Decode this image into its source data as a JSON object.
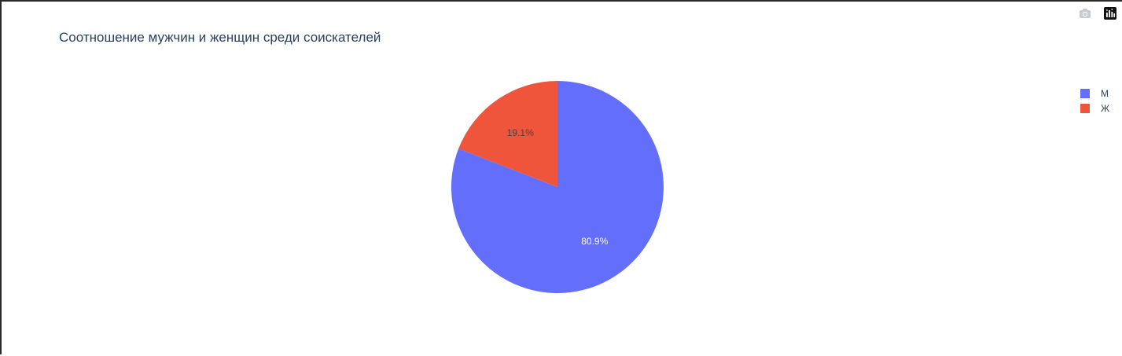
{
  "chart_data": {
    "type": "pie",
    "title": "Соотношение мужчин и женщин среди соискателей",
    "labels": [
      "М",
      "Ж"
    ],
    "values": [
      80.9,
      19.1
    ],
    "value_labels": [
      "80.9%",
      "19.1%"
    ],
    "colors": [
      "#636efa",
      "#ef553b"
    ],
    "legend_position": "top-right"
  },
  "modebar": {
    "icons": [
      "camera-icon",
      "plotly-logo-icon"
    ]
  }
}
